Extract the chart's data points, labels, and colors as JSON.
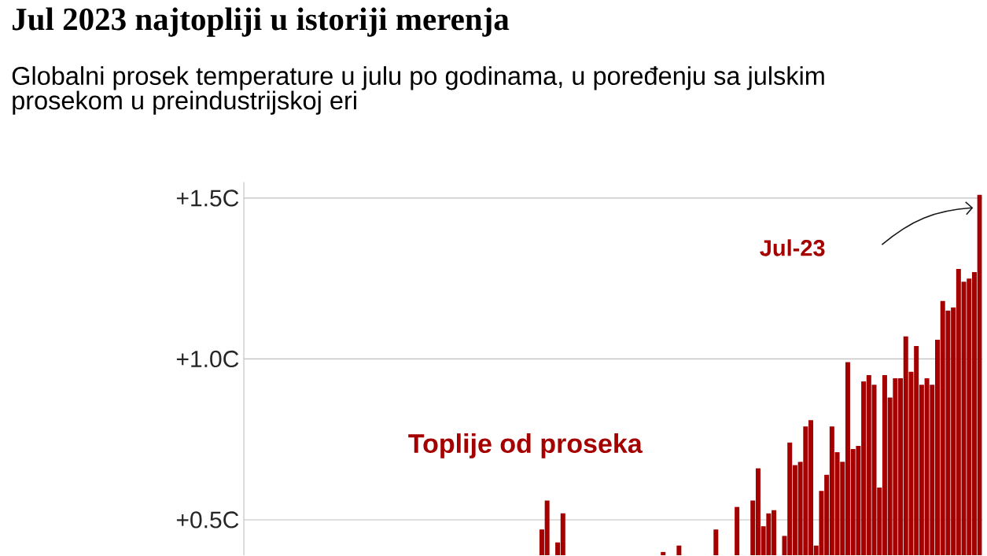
{
  "chart_data": {
    "type": "bar",
    "title": "Jul 2023 najtopliji u istoriji merenja",
    "subtitle": "Globalni prosek temperature u julu po godinama, u poređenju sa julskim prosekom u preindustrijskoj eri",
    "categories": [
      null,
      null,
      null,
      null,
      null,
      null,
      null,
      null,
      null,
      null,
      null,
      null,
      null,
      null,
      null,
      null,
      null,
      null,
      null,
      null,
      null,
      null,
      null,
      null,
      null,
      null,
      null,
      null,
      null,
      null,
      null,
      null,
      null,
      null,
      null,
      null,
      null,
      null,
      null,
      null,
      null,
      null,
      null,
      null,
      null,
      null,
      null,
      null,
      null,
      null,
      null,
      null,
      null,
      null,
      null,
      null,
      null,
      null,
      null,
      null,
      null,
      null,
      null,
      null,
      null,
      null,
      null,
      null,
      null,
      null,
      null,
      null,
      null,
      null,
      null,
      null,
      null,
      null,
      null,
      null,
      null,
      null,
      null,
      null,
      null,
      null,
      null,
      null,
      null,
      null,
      null,
      null,
      null,
      null,
      null,
      null,
      null,
      null,
      null,
      null,
      null,
      null,
      null,
      null,
      null,
      null,
      null,
      null,
      null,
      null,
      null,
      null,
      null,
      null,
      null,
      null,
      null,
      null,
      null,
      null,
      null,
      null,
      null,
      null,
      null,
      null,
      null,
      null,
      null,
      null,
      null,
      null,
      null,
      null,
      null,
      null,
      null,
      null,
      null,
      null
    ],
    "values": [
      null,
      null,
      null,
      null,
      null,
      null,
      null,
      null,
      null,
      null,
      null,
      null,
      null,
      null,
      null,
      null,
      null,
      null,
      null,
      null,
      null,
      null,
      null,
      null,
      null,
      null,
      null,
      null,
      null,
      null,
      null,
      null,
      null,
      null,
      null,
      null,
      null,
      null,
      null,
      null,
      null,
      null,
      null,
      null,
      null,
      null,
      null,
      null,
      null,
      null,
      null,
      null,
      null,
      null,
      null,
      null,
      0.47,
      0.56,
      null,
      0.43,
      0.52,
      null,
      null,
      null,
      null,
      null,
      null,
      null,
      null,
      null,
      null,
      null,
      null,
      null,
      null,
      null,
      null,
      null,
      null,
      0.4,
      null,
      null,
      0.42,
      null,
      null,
      null,
      null,
      null,
      null,
      0.47,
      null,
      null,
      null,
      0.54,
      null,
      null,
      0.56,
      0.66,
      0.48,
      0.52,
      0.53,
      null,
      0.45,
      0.74,
      0.67,
      0.68,
      0.79,
      0.81,
      0.42,
      0.59,
      0.64,
      0.79,
      0.71,
      0.68,
      0.99,
      0.72,
      0.73,
      0.93,
      0.95,
      0.92,
      0.6,
      0.95,
      0.88,
      0.94,
      0.94,
      1.07,
      0.96,
      1.04,
      0.92,
      0.94,
      0.92,
      1.06,
      1.18,
      1.15,
      1.16,
      1.28,
      1.24,
      1.25,
      1.27,
      1.51
    ],
    "color": "#a50000",
    "ylim": [
      0.39,
      1.55
    ],
    "yticks": [
      {
        "value": 0.5,
        "label": "+0.5C"
      },
      {
        "value": 1.0,
        "label": "+1.0C"
      },
      {
        "value": 1.5,
        "label": "+1.5C"
      }
    ],
    "grid": "y",
    "tick_labels": "y",
    "annotations": [
      "Toplije od proseka",
      "Jul-23"
    ]
  }
}
